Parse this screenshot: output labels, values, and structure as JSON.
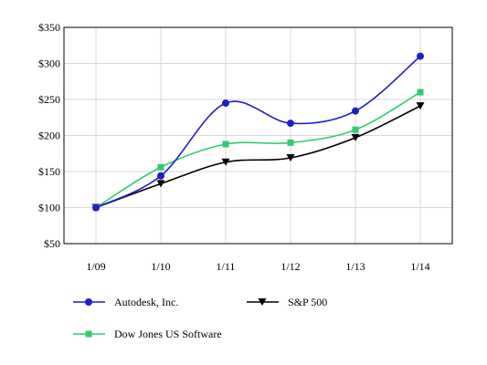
{
  "chart_data": {
    "type": "line",
    "title": "",
    "xlabel": "",
    "ylabel": "",
    "categories": [
      "1/09",
      "1/10",
      "1/11",
      "1/12",
      "1/13",
      "1/14"
    ],
    "ylim": [
      50,
      350
    ],
    "yticks": [
      50,
      100,
      150,
      200,
      250,
      300,
      350
    ],
    "ytick_labels": [
      "$50",
      "$100",
      "$150",
      "$200",
      "$250",
      "$300",
      "$350"
    ],
    "grid": true,
    "legend_position": "bottom",
    "series": [
      {
        "name": "Autodesk, Inc.",
        "color": "#1f1fc8",
        "marker": "circle",
        "values": [
          100,
          144,
          245,
          217,
          234,
          310
        ]
      },
      {
        "name": "S&P 500",
        "color": "#000000",
        "marker": "triangle-down",
        "values": [
          100,
          133,
          163,
          169,
          197,
          241
        ]
      },
      {
        "name": "Dow Jones US Software",
        "color": "#2ecc71",
        "marker": "square",
        "values": [
          100,
          156,
          188,
          190,
          208,
          260
        ]
      }
    ]
  }
}
